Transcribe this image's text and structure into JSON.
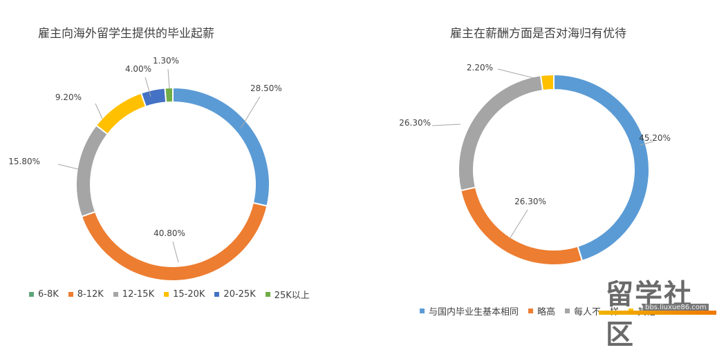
{
  "chart_data": [
    {
      "type": "donut",
      "title": "雇主向海外留学生提供的毕业起薪",
      "categories": [
        "6-8K",
        "8-12K",
        "12-15K",
        "15-20K",
        "20-25K",
        "25K以上"
      ],
      "values": [
        28.5,
        40.8,
        15.8,
        9.2,
        4.0,
        1.3
      ],
      "labels": [
        "28.50%",
        "40.80%",
        "15.80%",
        "9.20%",
        "4.00%",
        "1.30%"
      ],
      "colors": [
        "#5b9bd5",
        "#ed7d31",
        "#a5a5a5",
        "#ffc000",
        "#4472c4",
        "#70ad47"
      ],
      "legend": [
        "6-8K",
        "8-12K",
        "12-15K",
        "15-20K",
        "20-25K",
        "25K以上"
      ],
      "legend_colors": [
        "#5ea67a",
        "#ed7d31",
        "#a5a5a5",
        "#ffc000",
        "#4472c4",
        "#70ad47"
      ],
      "legend_position": "bottom"
    },
    {
      "type": "donut",
      "title": "雇主在薪酬方面是否对海归有优待",
      "categories": [
        "与国内毕业生基本相同",
        "略高",
        "每人不一样",
        "其他"
      ],
      "values": [
        45.2,
        26.3,
        26.3,
        2.2
      ],
      "labels": [
        "45.20%",
        "26.30%",
        "26.30%",
        "2.20%"
      ],
      "colors": [
        "#5b9bd5",
        "#ed7d31",
        "#a5a5a5",
        "#ffc000"
      ],
      "legend": [
        "与国内毕业生基本相同",
        "略高",
        "每人不一样",
        "其他"
      ],
      "legend_colors": [
        "#5b9bd5",
        "#ed7d31",
        "#a5a5a5",
        "#ffc000"
      ],
      "legend_position": "bottom"
    }
  ],
  "watermark": {
    "text": "留学社区",
    "url": "bbs.liuxue86.com"
  }
}
